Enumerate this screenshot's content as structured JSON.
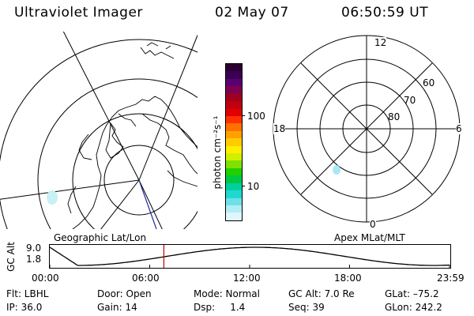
{
  "header": {
    "instrument": "Ultraviolet Imager",
    "date": "02 May 07",
    "time": "06:50:59 UT"
  },
  "geo_map": {
    "label": "Geographic Lat/Lon",
    "emission_color": "#c8f0f5"
  },
  "colorbar": {
    "unit": "photon cm⁻²s⁻¹",
    "tick_100": "100",
    "tick_10": "10",
    "colors_top_to_bottom": [
      "#2a0030",
      "#3b0055",
      "#5a0070",
      "#800050",
      "#a00020",
      "#c00010",
      "#e00000",
      "#ff3000",
      "#ff7000",
      "#ffa000",
      "#ffcc00",
      "#ffee00",
      "#d0f000",
      "#80e000",
      "#20d000",
      "#00c840",
      "#00d0a0",
      "#20d8d0",
      "#70e0e8",
      "#b0eef5",
      "#e0f6fa"
    ]
  },
  "polar_plot": {
    "label": "Apex MLat/MLT",
    "mlt_top": "12",
    "mlt_bottom": "0",
    "mlt_left": "18",
    "mlt_right": "6",
    "lat_60": "60",
    "lat_70": "70",
    "lat_80": "80",
    "emission_color": "#a8e8f4"
  },
  "altitude_panel": {
    "axis_title": "GC Alt",
    "y_top": "9.0",
    "y_bottom": "1.8",
    "x_ticks": [
      "00:00",
      "06:00",
      "12:00",
      "18:00",
      "23:59"
    ],
    "current_time_marker_color": "#c00000"
  },
  "status": {
    "flt": "Flt: LBHL",
    "ip": "IP: 36.0",
    "door": "Door: Open",
    "gain": "Gain: 14",
    "mode": "Mode: Normal",
    "dsp": "Dsp:     1.4",
    "gc_alt": "GC Alt: 7.0 Re",
    "seq": "Seq: 39",
    "glat": "GLat: –75.2",
    "glon": "GLon: 242.2"
  }
}
